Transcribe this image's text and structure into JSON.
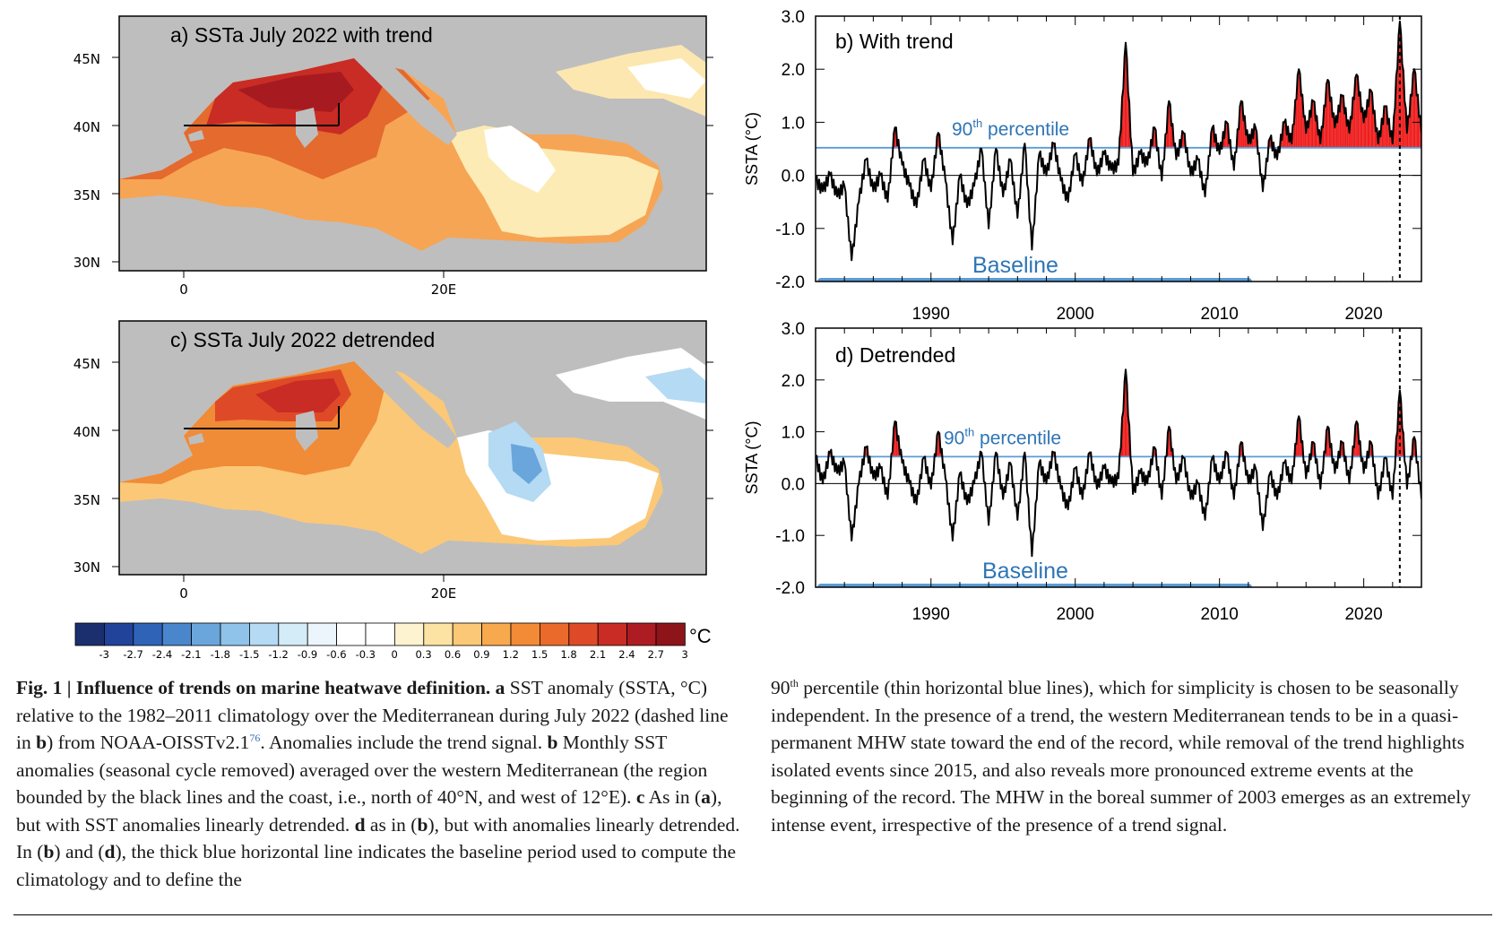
{
  "panels": {
    "a": {
      "title": "a) SSTa July 2022 with trend"
    },
    "b": {
      "title": "b)  With trend"
    },
    "c": {
      "title": "c) SSTa July 2022 detrended"
    },
    "d": {
      "title": "d)  Detrended"
    }
  },
  "map_axes": {
    "lat_labels": [
      "45N",
      "40N",
      "35N",
      "30N"
    ],
    "lon_labels": [
      "0",
      "20E"
    ]
  },
  "colorbar": {
    "unit": "°C",
    "ticks": [
      "-3",
      "-2.7",
      "-2.4",
      "-2.1",
      "-1.8",
      "-1.5",
      "-1.2",
      "-0.9",
      "-0.6",
      "-0.3",
      "0",
      "0.3",
      "0.6",
      "0.9",
      "1.2",
      "1.5",
      "1.8",
      "2.1",
      "2.4",
      "2.7",
      "3"
    ],
    "colors": [
      "#1b2f6e",
      "#22439a",
      "#2e63b8",
      "#4a86cc",
      "#6aa6dc",
      "#8fc3ea",
      "#b4daf4",
      "#d4ebf8",
      "#ebf5fb",
      "#ffffff",
      "#ffffff",
      "#fef3d0",
      "#fde3a3",
      "#fbc877",
      "#f8a94d",
      "#f38a36",
      "#ea6a2c",
      "#de4a27",
      "#c92b25",
      "#ad1c22",
      "#8d1419"
    ]
  },
  "chart_data": [
    {
      "panel": "b",
      "type": "line",
      "title": "b)  With trend",
      "ylabel": "SSTA (°C)",
      "ylim": [
        -2.0,
        3.0
      ],
      "yticks": [
        "3.0",
        "2.0",
        "1.0",
        "0.0",
        "-1.0",
        "-2.0"
      ],
      "xticks": [
        "1990",
        "2000",
        "2010",
        "2020"
      ],
      "threshold_label": "90th percentile",
      "threshold": 0.52,
      "baseline_label": "Baseline",
      "baseline_period": [
        1982,
        2011
      ],
      "event_marker_year": 2022.5,
      "series": [
        {
          "x": [
            1982,
            1982.5,
            1983,
            1983.5,
            1984,
            1984.5,
            1985,
            1985.5,
            1986,
            1986.5,
            1987,
            1987.5,
            1988,
            1988.5,
            1989,
            1989.5,
            1990,
            1990.5,
            1991,
            1991.5,
            1992,
            1992.5,
            1993,
            1993.5,
            1994,
            1994.5,
            1995,
            1995.5,
            1996,
            1996.5,
            1997,
            1997.5,
            1998,
            1998.5,
            1999,
            1999.5,
            2000,
            2000.5,
            2001,
            2001.5,
            2002,
            2002.5,
            2003,
            2003.5,
            2004,
            2004.5,
            2005,
            2005.5,
            2006,
            2006.5,
            2007,
            2007.5,
            2008,
            2008.5,
            2009,
            2009.5,
            2010,
            2010.5,
            2011,
            2011.5,
            2012,
            2012.5,
            2013,
            2013.5,
            2014,
            2014.5,
            2015,
            2015.5,
            2016,
            2016.5,
            2017,
            2017.5,
            2018,
            2018.5,
            2019,
            2019.5,
            2020,
            2020.5,
            2021,
            2021.5,
            2022,
            2022.5,
            2023,
            2023.5,
            2024
          ],
          "y": [
            -0.1,
            -0.3,
            0.0,
            -0.4,
            -0.2,
            -1.6,
            -0.5,
            0.3,
            -0.3,
            0.0,
            -0.5,
            0.9,
            0.2,
            -0.2,
            -0.6,
            0.3,
            -0.3,
            0.8,
            -0.1,
            -1.3,
            0.0,
            -0.6,
            -0.2,
            0.5,
            -1.0,
            0.5,
            -0.4,
            0.3,
            -0.8,
            0.6,
            -1.4,
            0.4,
            0.0,
            0.6,
            -0.1,
            -0.5,
            0.4,
            -0.2,
            0.7,
            0.0,
            0.4,
            0.1,
            0.2,
            2.5,
            0.0,
            0.4,
            0.2,
            0.9,
            -0.1,
            1.4,
            0.3,
            0.8,
            0.0,
            0.3,
            -0.4,
            0.9,
            0.4,
            1.0,
            0.1,
            1.4,
            0.6,
            0.9,
            -0.3,
            0.7,
            0.3,
            1.0,
            0.6,
            2.0,
            0.8,
            1.4,
            0.6,
            1.8,
            0.9,
            1.5,
            0.8,
            1.9,
            1.0,
            1.6,
            0.6,
            1.3,
            0.6,
            2.9,
            0.8,
            2.0,
            0.8
          ]
        }
      ]
    },
    {
      "panel": "d",
      "type": "line",
      "title": "d)  Detrended",
      "ylabel": "SSTA (°C)",
      "ylim": [
        -2.0,
        3.0
      ],
      "yticks": [
        "3.0",
        "2.0",
        "1.0",
        "0.0",
        "-1.0",
        "-2.0"
      ],
      "xticks": [
        "1990",
        "2000",
        "2010",
        "2020"
      ],
      "threshold_label": "90th percentile",
      "threshold": 0.52,
      "baseline_label": "Baseline",
      "baseline_period": [
        1982,
        2011
      ],
      "event_marker_year": 2022.5,
      "series": [
        {
          "x": [
            1982,
            1982.5,
            1983,
            1983.5,
            1984,
            1984.5,
            1985,
            1985.5,
            1986,
            1986.5,
            1987,
            1987.5,
            1988,
            1988.5,
            1989,
            1989.5,
            1990,
            1990.5,
            1991,
            1991.5,
            1992,
            1992.5,
            1993,
            1993.5,
            1994,
            1994.5,
            1995,
            1995.5,
            1996,
            1996.5,
            1997,
            1997.5,
            1998,
            1998.5,
            1999,
            1999.5,
            2000,
            2000.5,
            2001,
            2001.5,
            2002,
            2002.5,
            2003,
            2003.5,
            2004,
            2004.5,
            2005,
            2005.5,
            2006,
            2006.5,
            2007,
            2007.5,
            2008,
            2008.5,
            2009,
            2009.5,
            2010,
            2010.5,
            2011,
            2011.5,
            2012,
            2012.5,
            2013,
            2013.5,
            2014,
            2014.5,
            2015,
            2015.5,
            2016,
            2016.5,
            2017,
            2017.5,
            2018,
            2018.5,
            2019,
            2019.5,
            2020,
            2020.5,
            2021,
            2021.5,
            2022,
            2022.5,
            2023,
            2023.5,
            2024
          ],
          "y": [
            0.5,
            0.0,
            0.6,
            0.2,
            0.4,
            -1.1,
            0.0,
            0.7,
            0.1,
            0.3,
            -0.3,
            1.2,
            0.4,
            0.0,
            -0.4,
            0.5,
            -0.1,
            1.0,
            0.1,
            -1.1,
            0.2,
            -0.4,
            0.0,
            0.6,
            -0.8,
            0.6,
            -0.3,
            0.4,
            -0.7,
            0.6,
            -1.4,
            0.4,
            0.0,
            0.6,
            -0.1,
            -0.5,
            0.3,
            -0.3,
            0.6,
            -0.1,
            0.3,
            0.0,
            0.1,
            2.2,
            -0.2,
            0.2,
            0.0,
            0.7,
            -0.3,
            1.1,
            0.0,
            0.5,
            -0.3,
            0.0,
            -0.7,
            0.5,
            0.0,
            0.6,
            -0.3,
            0.8,
            0.0,
            0.3,
            -0.9,
            0.2,
            -0.3,
            0.4,
            0.0,
            1.3,
            0.1,
            0.8,
            -0.1,
            1.1,
            0.2,
            0.8,
            0.0,
            1.2,
            0.2,
            0.8,
            -0.3,
            0.5,
            -0.3,
            1.8,
            -0.1,
            0.9,
            -0.3
          ]
        }
      ]
    }
  ],
  "caption": {
    "fig_label": "Fig. 1 | Influence of trends on marine heatwave definition.",
    "a_letter": "a",
    "a_text": " SST anomaly (SSTA, °C) relative to the 1982–2011 climatology over the Mediterranean during July 2022 (dashed line in ",
    "a_b": "b",
    "a_text2": ") from NOAA-OISSTv2.1",
    "a_ref": "76",
    "a_text3": ". Anomalies include the trend signal. ",
    "b_letter": "b",
    "b_text": " Monthly SST anomalies (seasonal cycle removed) averaged over the western Mediterranean (the region bounded by the black lines and the coast, i.e., north of 40°N, and west of 12°E). ",
    "c_letter": "c",
    "c_text": " As in (",
    "c_a": "a",
    "c_text2": "), but with SST anomalies linearly detrended. ",
    "d_letter": "d",
    "d_text": " as in (",
    "d_b": "b",
    "d_text2": "), but with anomalies linearly detrended. In (",
    "d_b2": "b",
    "d_text3": ") and (",
    "d_d": "d",
    "d_text4": "), the thick blue horizontal line indicates the baseline period used to compute the climatology and to define the",
    "right_sup": "90",
    "right_sup_th": "th",
    "right_text": " percentile (thin horizontal blue lines), which for simplicity is chosen to be seasonally independent. In the presence of a trend, the western Mediterranean tends to be in a quasi-permanent MHW state toward the end of the record, while removal of the trend highlights isolated events since 2015, and also reveals more pronounced extreme events at the beginning of the record. The MHW in the boreal summer of 2003 emerges as an extremely intense event, irrespective of the presence of a trend signal."
  }
}
